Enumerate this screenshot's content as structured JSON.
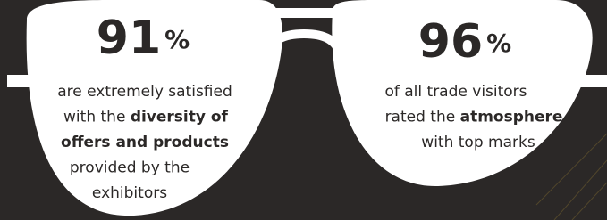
{
  "stats": [
    {
      "number": 91,
      "unit": "%",
      "lines": [
        [
          {
            "text": "are extremely satisfied"
          }
        ],
        [
          {
            "text": "with the "
          },
          {
            "text": "diversity of",
            "bold": true
          }
        ],
        [
          {
            "text": "offers and products",
            "bold": true
          }
        ],
        [
          {
            "text": "provided by the"
          }
        ],
        [
          {
            "text": "exhibitors"
          }
        ]
      ]
    },
    {
      "number": 96,
      "unit": "%",
      "lines": [
        [
          {
            "text": "of all trade visitors"
          }
        ],
        [
          {
            "text": "rated the "
          },
          {
            "text": "atmosphere",
            "bold": true
          }
        ],
        [
          {
            "text": "with top marks"
          }
        ]
      ]
    }
  ]
}
